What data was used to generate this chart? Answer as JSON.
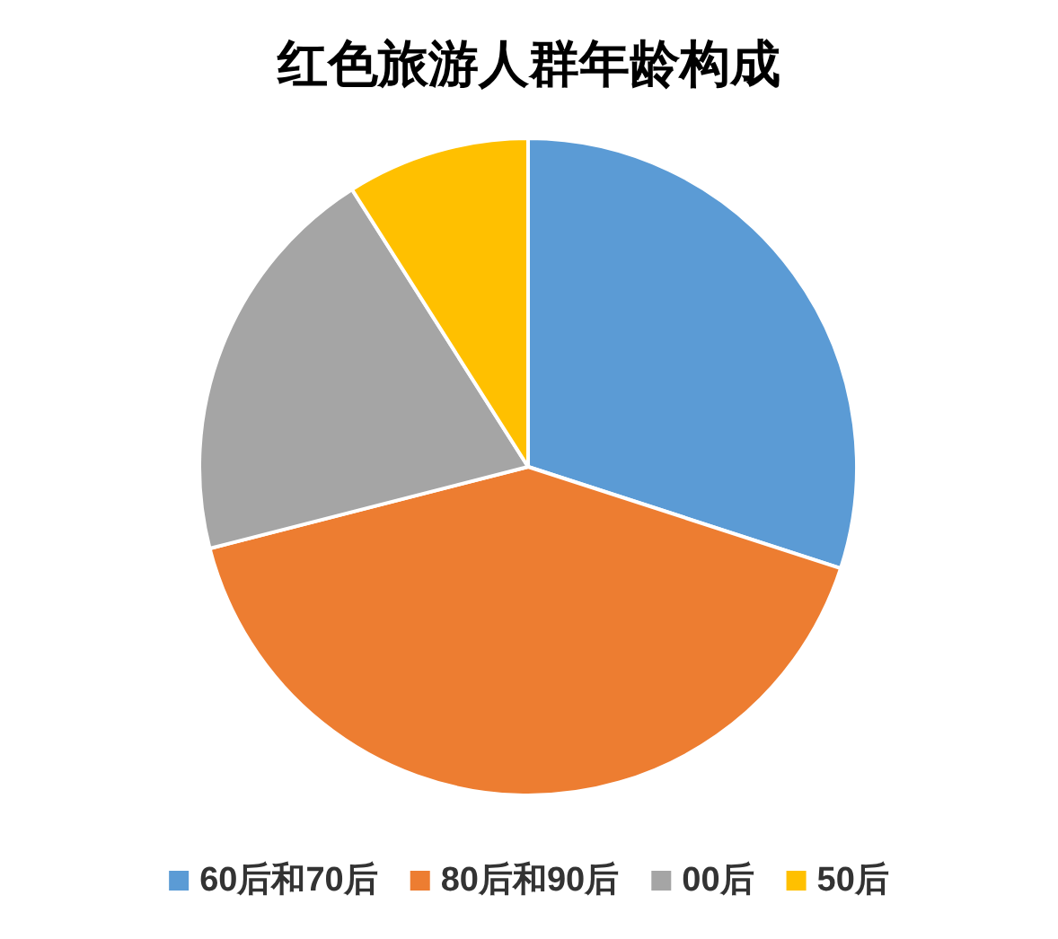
{
  "chart_data": {
    "type": "pie",
    "title": "红色旅游人群年龄构成",
    "categories": [
      "60后和70后",
      "80后和90后",
      "00后",
      "50后"
    ],
    "values": [
      30,
      41,
      20,
      9
    ],
    "colors": [
      "#5b9bd5",
      "#ed7d31",
      "#a5a5a5",
      "#ffc000"
    ],
    "legend": "bottom"
  }
}
